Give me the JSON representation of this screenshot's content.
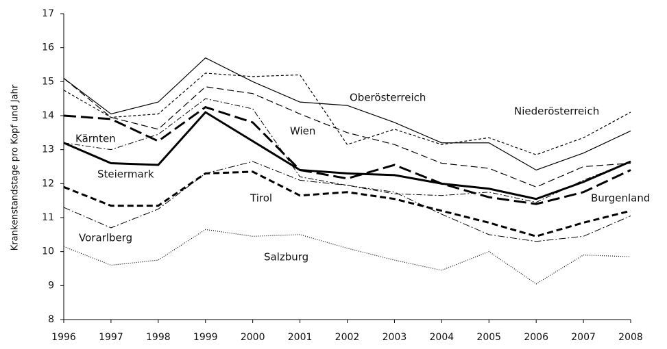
{
  "chart_data": {
    "type": "line",
    "y_label": "Krankenstandstage pro Kopf und Jahr",
    "categories": [
      "1996",
      "1997",
      "1998",
      "1999",
      "2000",
      "2001",
      "2002",
      "2003",
      "2004",
      "2005",
      "2006",
      "2007",
      "2008"
    ],
    "ylim": [
      8,
      17
    ],
    "yticks": [
      8,
      9,
      10,
      11,
      12,
      13,
      14,
      15,
      16,
      17
    ],
    "grid": false,
    "series": [
      {
        "name": "Oberösterreich",
        "color": "#000000",
        "values": [
          15.1,
          14.05,
          14.4,
          15.7,
          15.0,
          14.4,
          14.3,
          13.8,
          13.2,
          13.2,
          12.4,
          12.9,
          13.55
        ]
      },
      {
        "name": "Niederösterreich",
        "color": "#000000",
        "values": [
          14.75,
          13.95,
          14.05,
          15.25,
          15.15,
          15.2,
          13.15,
          13.6,
          13.15,
          13.35,
          12.85,
          13.35,
          14.1
        ]
      },
      {
        "name": "Wien",
        "color": "#000000",
        "values": [
          15.1,
          13.95,
          13.6,
          14.85,
          14.65,
          14.05,
          13.5,
          13.15,
          12.6,
          12.45,
          11.9,
          12.5,
          12.6
        ]
      },
      {
        "name": "Kärnten",
        "color": "#000000",
        "values": [
          13.2,
          13.0,
          13.45,
          14.5,
          14.2,
          12.2,
          11.95,
          11.7,
          11.65,
          11.75,
          11.45,
          12.1,
          12.65
        ]
      },
      {
        "name": "Burgenland",
        "color": "#000000",
        "values": [
          14.0,
          13.9,
          13.25,
          14.25,
          13.8,
          12.4,
          12.15,
          12.55,
          12.0,
          11.6,
          11.4,
          11.75,
          12.4
        ]
      },
      {
        "name": "Steiermark",
        "color": "#000000",
        "values": [
          13.2,
          12.6,
          12.55,
          14.1,
          13.25,
          12.4,
          12.3,
          12.25,
          12.0,
          11.85,
          11.55,
          12.05,
          12.65
        ]
      },
      {
        "name": "Tirol",
        "color": "#000000",
        "values": [
          11.9,
          11.35,
          11.35,
          12.3,
          12.35,
          11.65,
          11.75,
          11.55,
          11.2,
          10.85,
          10.45,
          10.85,
          11.2
        ]
      },
      {
        "name": "Vorarlberg",
        "color": "#000000",
        "values": [
          11.3,
          10.7,
          11.25,
          12.3,
          12.65,
          12.1,
          11.95,
          11.75,
          11.1,
          10.5,
          10.3,
          10.45,
          11.05
        ]
      },
      {
        "name": "Salzburg",
        "color": "#000000",
        "values": [
          10.15,
          9.6,
          9.75,
          10.65,
          10.45,
          10.5,
          10.1,
          9.75,
          9.45,
          10.0,
          9.05,
          9.9,
          9.85
        ]
      }
    ]
  }
}
